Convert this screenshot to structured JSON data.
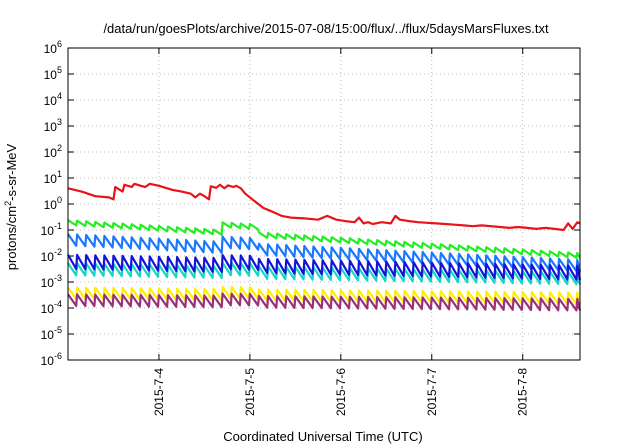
{
  "chart_data": {
    "type": "line",
    "title": "/data/run/goesPlots/archive/2015-07-08/15:00/flux/../flux/5daysMarsFluxes.txt",
    "xlabel": "Coordinated Universal Time (UTC)",
    "ylabel": {
      "prefix": "protons/cm",
      "sup": "2",
      "suffix": "-s-sr-MeV"
    },
    "y_scale": "log",
    "ylim": [
      1e-06,
      1000000.0
    ],
    "y_ticks": [
      {
        "exp": -6,
        "label": "-6"
      },
      {
        "exp": -5,
        "label": "-5"
      },
      {
        "exp": -4,
        "label": "-4"
      },
      {
        "exp": -3,
        "label": "-3"
      },
      {
        "exp": -2,
        "label": "-2"
      },
      {
        "exp": -1,
        "label": "-1"
      },
      {
        "exp": 0,
        "label": "0"
      },
      {
        "exp": 1,
        "label": "1"
      },
      {
        "exp": 2,
        "label": "2"
      },
      {
        "exp": 3,
        "label": "3"
      },
      {
        "exp": 4,
        "label": "4"
      },
      {
        "exp": 5,
        "label": "5"
      },
      {
        "exp": 6,
        "label": "6"
      }
    ],
    "y_tick_base": "10",
    "xlim_days": [
      3.0,
      8.63
    ],
    "x_ticks": [
      {
        "day": 4,
        "label": "2015-7-4"
      },
      {
        "day": 5,
        "label": "2015-7-5"
      },
      {
        "day": 6,
        "label": "2015-7-6"
      },
      {
        "day": 7,
        "label": "2015-7-7"
      },
      {
        "day": 8,
        "label": "2015-7-8"
      }
    ],
    "grid": true,
    "series": [
      {
        "color": "#e8141a",
        "points": [
          [
            3.0,
            4.0
          ],
          [
            3.15,
            3.0
          ],
          [
            3.3,
            2.0
          ],
          [
            3.45,
            1.8
          ],
          [
            3.5,
            1.5
          ],
          [
            3.52,
            4.5
          ],
          [
            3.6,
            3.0
          ],
          [
            3.62,
            5.5
          ],
          [
            3.7,
            4.5
          ],
          [
            3.73,
            6.0
          ],
          [
            3.8,
            5.0
          ],
          [
            3.85,
            4.5
          ],
          [
            3.9,
            6.0
          ],
          [
            4.0,
            5.0
          ],
          [
            4.15,
            3.5
          ],
          [
            4.25,
            3.0
          ],
          [
            4.35,
            2.5
          ],
          [
            4.4,
            1.8
          ],
          [
            4.45,
            2.5
          ],
          [
            4.5,
            2.0
          ],
          [
            4.55,
            1.5
          ],
          [
            4.57,
            4.8
          ],
          [
            4.63,
            4.2
          ],
          [
            4.67,
            5.5
          ],
          [
            4.72,
            4.0
          ],
          [
            4.76,
            5.2
          ],
          [
            4.82,
            4.5
          ],
          [
            4.85,
            5.0
          ],
          [
            4.9,
            4.0
          ],
          [
            4.95,
            2.5
          ],
          [
            5.05,
            1.3
          ],
          [
            5.15,
            0.7
          ],
          [
            5.25,
            0.5
          ],
          [
            5.35,
            0.35
          ],
          [
            5.45,
            0.3
          ],
          [
            5.6,
            0.28
          ],
          [
            5.75,
            0.25
          ],
          [
            5.85,
            0.35
          ],
          [
            5.95,
            0.25
          ],
          [
            6.05,
            0.22
          ],
          [
            6.15,
            0.2
          ],
          [
            6.2,
            0.3
          ],
          [
            6.25,
            0.18
          ],
          [
            6.3,
            0.2
          ],
          [
            6.35,
            0.17
          ],
          [
            6.45,
            0.2
          ],
          [
            6.55,
            0.18
          ],
          [
            6.6,
            0.35
          ],
          [
            6.65,
            0.25
          ],
          [
            6.75,
            0.22
          ],
          [
            6.85,
            0.2
          ],
          [
            6.95,
            0.19
          ],
          [
            7.05,
            0.18
          ],
          [
            7.15,
            0.17
          ],
          [
            7.25,
            0.16
          ],
          [
            7.35,
            0.15
          ],
          [
            7.45,
            0.14
          ],
          [
            7.55,
            0.15
          ],
          [
            7.65,
            0.14
          ],
          [
            7.75,
            0.13
          ],
          [
            7.85,
            0.12
          ],
          [
            7.95,
            0.13
          ],
          [
            8.05,
            0.12
          ],
          [
            8.15,
            0.11
          ],
          [
            8.25,
            0.12
          ],
          [
            8.35,
            0.11
          ],
          [
            8.45,
            0.1
          ],
          [
            8.5,
            0.18
          ],
          [
            8.55,
            0.11
          ],
          [
            8.6,
            0.2
          ],
          [
            8.63,
            0.18
          ]
        ]
      },
      {
        "color": "#22ee22",
        "sawtooth": {
          "start": 0.15,
          "end": 0.008,
          "amp": 1.6,
          "bump_at": 4.6,
          "bump": 2.0
        }
      },
      {
        "color": "#1a78ff",
        "sawtooth": {
          "start": 0.025,
          "end": 0.0025,
          "amp": 2.8,
          "bump_at": 4.6,
          "bump": 1.6
        }
      },
      {
        "color": "#17d6c4",
        "sawtooth": {
          "start": 0.0018,
          "end": 0.0008,
          "amp": 3.0,
          "bump_at": 4.6,
          "bump": 1.3
        }
      },
      {
        "color": "#1414d8",
        "sawtooth": {
          "start": 0.0032,
          "end": 0.0012,
          "amp": 3.5,
          "bump_at": 4.6,
          "bump": 1.3
        }
      },
      {
        "color": "#ffee00",
        "sawtooth": {
          "start": 0.00022,
          "end": 0.00014,
          "amp": 2.8,
          "bump_at": 4.6,
          "bump": 1.2
        }
      },
      {
        "color": "#9a2f7a",
        "sawtooth": {
          "start": 0.00012,
          "end": 8e-05,
          "amp": 2.8,
          "bump_at": 4.6,
          "bump": 1.2
        }
      }
    ],
    "sawtooth_period_days": 0.1
  }
}
